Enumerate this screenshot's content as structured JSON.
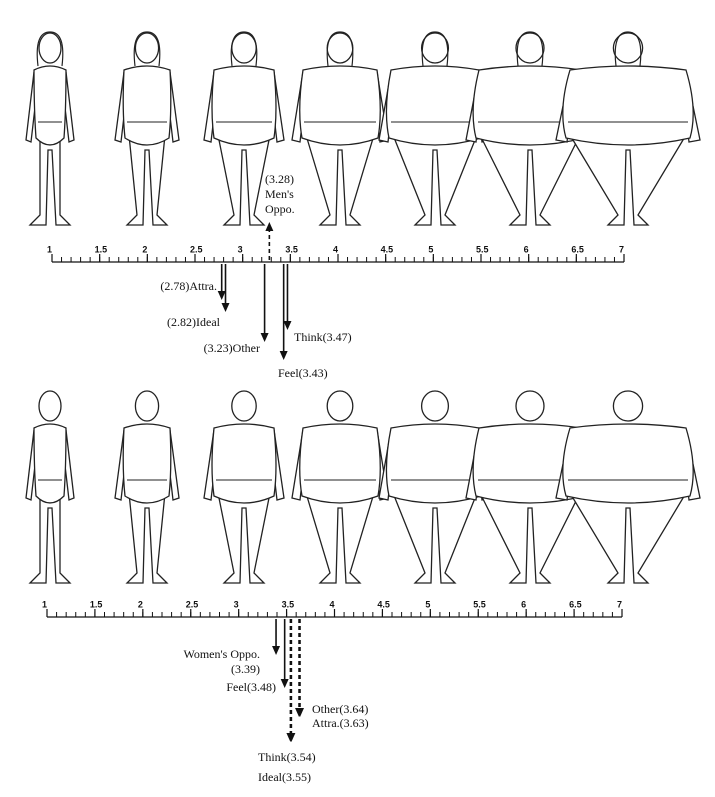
{
  "top_scale": {
    "ticks": [
      1,
      1.5,
      2,
      2.5,
      3,
      3.5,
      4,
      4.5,
      5,
      5.5,
      6,
      6.5,
      7
    ],
    "arrows": [
      {
        "lines": [
          "(3.28)",
          "Men's",
          "Oppo."
        ],
        "value": 3.28
      },
      {
        "lines": [
          "(2.78)Attra."
        ],
        "value": 2.78
      },
      {
        "lines": [
          "(2.82)Ideal"
        ],
        "value": 2.82
      },
      {
        "lines": [
          "(3.23)Other"
        ],
        "value": 3.23
      },
      {
        "lines": [
          "Think(3.47)"
        ],
        "value": 3.47
      },
      {
        "lines": [
          "Feel(3.43)"
        ],
        "value": 3.43
      }
    ]
  },
  "bottom_scale": {
    "ticks": [
      1,
      1.5,
      2,
      2.5,
      3,
      3.5,
      4,
      4.5,
      5,
      5.5,
      6,
      6.5,
      7
    ],
    "arrows": [
      {
        "lines": [
          "Women's Oppo.",
          "(3.39)"
        ],
        "value": 3.39
      },
      {
        "lines": [
          "Feel(3.48)"
        ],
        "value": 3.48
      },
      {
        "lines": [
          "Other(3.64)"
        ],
        "value": 3.64
      },
      {
        "lines": [
          "Attra.(3.63)"
        ],
        "value": 3.63
      },
      {
        "lines": [
          "Think(3.54)"
        ],
        "value": 3.54
      },
      {
        "lines": [
          "Ideal(3.55)"
        ],
        "value": 3.55
      }
    ]
  }
}
